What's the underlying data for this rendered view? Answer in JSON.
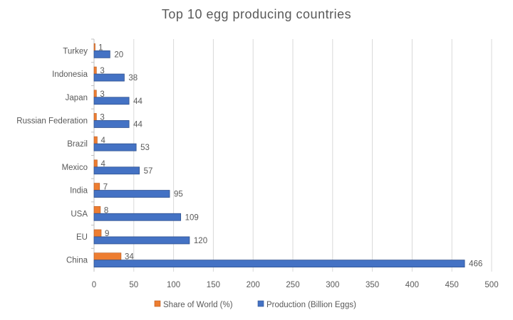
{
  "chart_data": {
    "type": "bar",
    "orientation": "horizontal",
    "title": "Top 10 egg producing  countries",
    "categories": [
      "Turkey",
      "Indonesia",
      "Japan",
      "Russian Federation",
      "Brazil",
      "Mexico",
      "India",
      "USA",
      "EU",
      "China"
    ],
    "series": [
      {
        "name": "Share of World (%)",
        "color": "#ED7D31",
        "values": [
          1,
          3,
          3,
          3,
          4,
          4,
          7,
          8,
          9,
          34
        ]
      },
      {
        "name": "Production (Billion Eggs)",
        "color": "#4472C4",
        "values": [
          20,
          38,
          44,
          44,
          53,
          57,
          95,
          109,
          120,
          466
        ]
      }
    ],
    "xlim": [
      0,
      500
    ],
    "xticks": [
      0,
      50,
      100,
      150,
      200,
      250,
      300,
      350,
      400,
      450,
      500
    ],
    "xlabel": "",
    "ylabel": "",
    "grid": "vertical",
    "legend_position": "bottom"
  }
}
